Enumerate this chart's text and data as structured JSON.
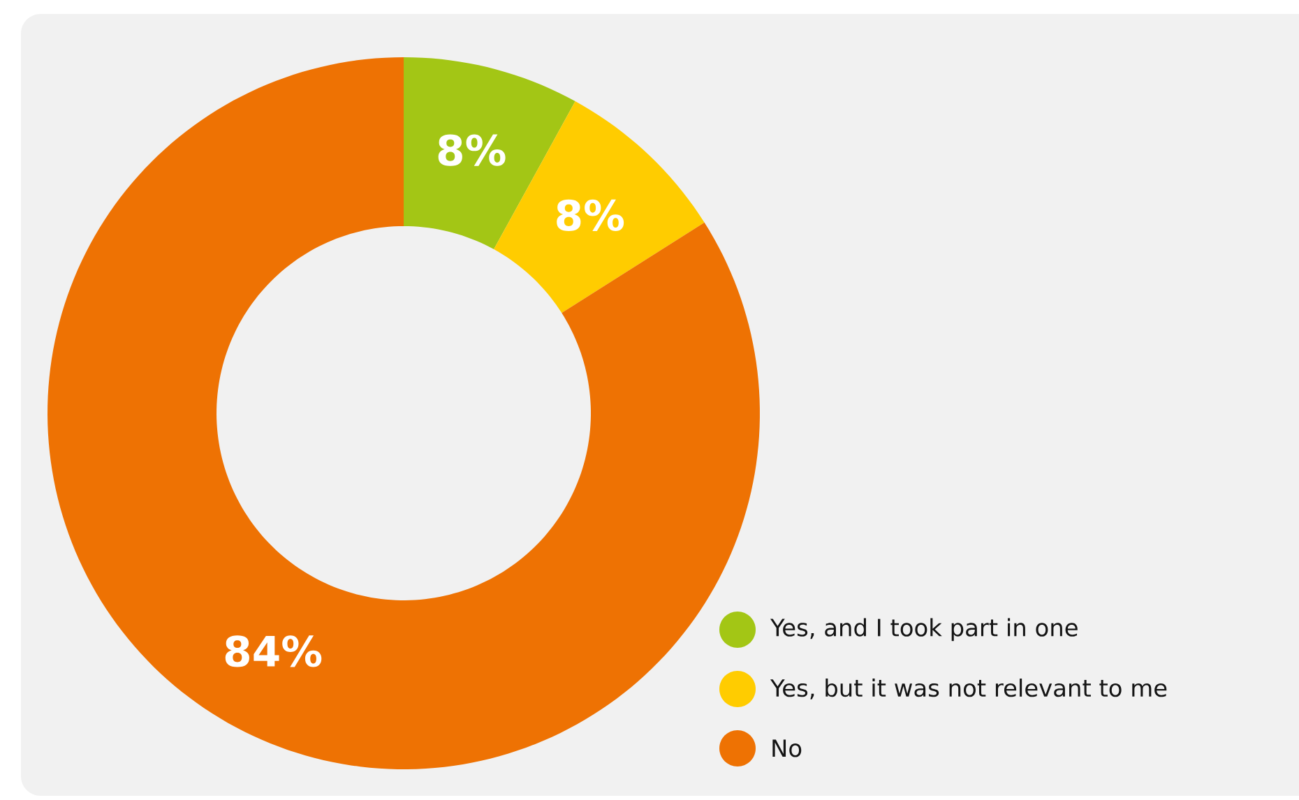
{
  "chart_data": {
    "type": "donut",
    "categories": [
      "Yes, and I took part in one",
      "Yes, but it was not relevant to me",
      "No"
    ],
    "values": [
      8,
      8,
      84
    ],
    "colors": [
      "#a3c615",
      "#ffcc00",
      "#ee7203"
    ],
    "value_labels": [
      "8%",
      "8%",
      "84%"
    ],
    "legend": "bottom right"
  }
}
